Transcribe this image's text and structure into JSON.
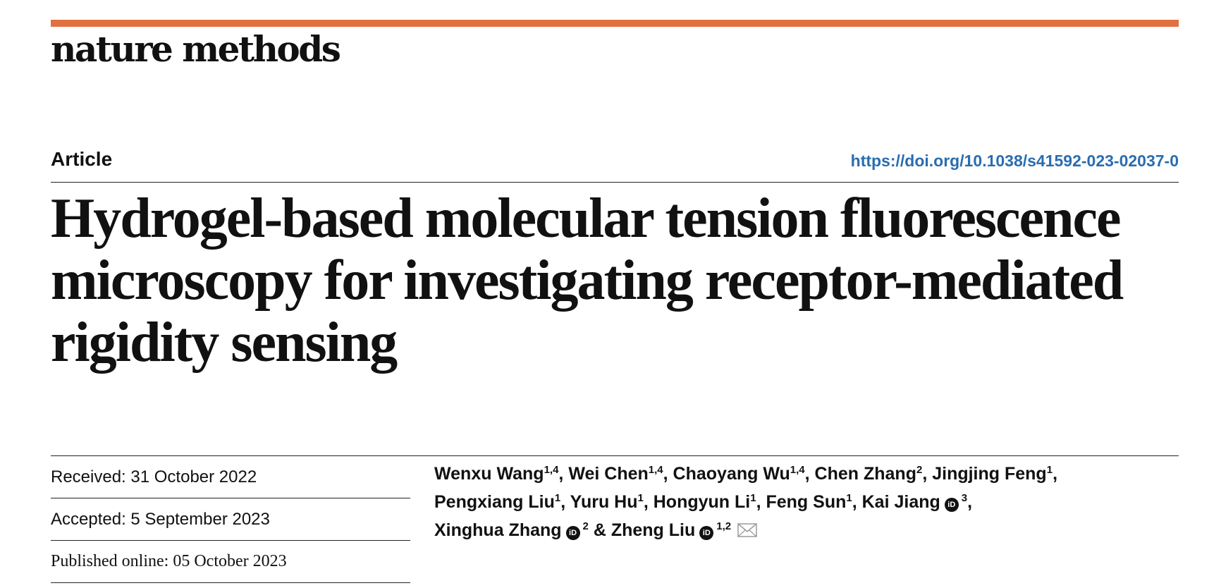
{
  "journal": {
    "name": "nature methods",
    "accent_color": "#e07040"
  },
  "article": {
    "type": "Article",
    "doi": "https://doi.org/10.1038/s41592-023-02037-0",
    "title": "Hydrogel-based molecular tension fluorescence microscopy for investigating receptor-mediated rigidity sensing"
  },
  "dates": {
    "received": "Received: 31 October 2022",
    "accepted": "Accepted: 5 September 2023",
    "published": "Published online: 05 October 2023"
  },
  "authors": [
    {
      "name": "Wenxu Wang",
      "affil": "1,4",
      "orcid": false,
      "sep": ", "
    },
    {
      "name": "Wei Chen",
      "affil": "1,4",
      "orcid": false,
      "sep": ", "
    },
    {
      "name": "Chaoyang Wu",
      "affil": "1,4",
      "orcid": false,
      "sep": ", "
    },
    {
      "name": "Chen Zhang",
      "affil": "2",
      "orcid": false,
      "sep": ", "
    },
    {
      "name": "Jingjing Feng",
      "affil": "1",
      "orcid": false,
      "sep": ", "
    },
    {
      "name": "Pengxiang Liu",
      "affil": "1",
      "orcid": false,
      "sep": ", "
    },
    {
      "name": "Yuru Hu",
      "affil": "1",
      "orcid": false,
      "sep": ", "
    },
    {
      "name": "Hongyun Li",
      "affil": "1",
      "orcid": false,
      "sep": ", "
    },
    {
      "name": "Feng Sun",
      "affil": "1",
      "orcid": false,
      "sep": ", "
    },
    {
      "name": "Kai Jiang",
      "affil": "3",
      "orcid": true,
      "sep": ", "
    },
    {
      "name": "Xinghua Zhang",
      "affil": "2",
      "orcid": true,
      "sep": " & "
    },
    {
      "name": "Zheng Liu",
      "affil": "1,2",
      "orcid": true,
      "sep": ""
    }
  ],
  "icons": {
    "orcid": "orcid-icon",
    "orcid_glyph": "iD",
    "corresponding": "envelope-icon"
  }
}
